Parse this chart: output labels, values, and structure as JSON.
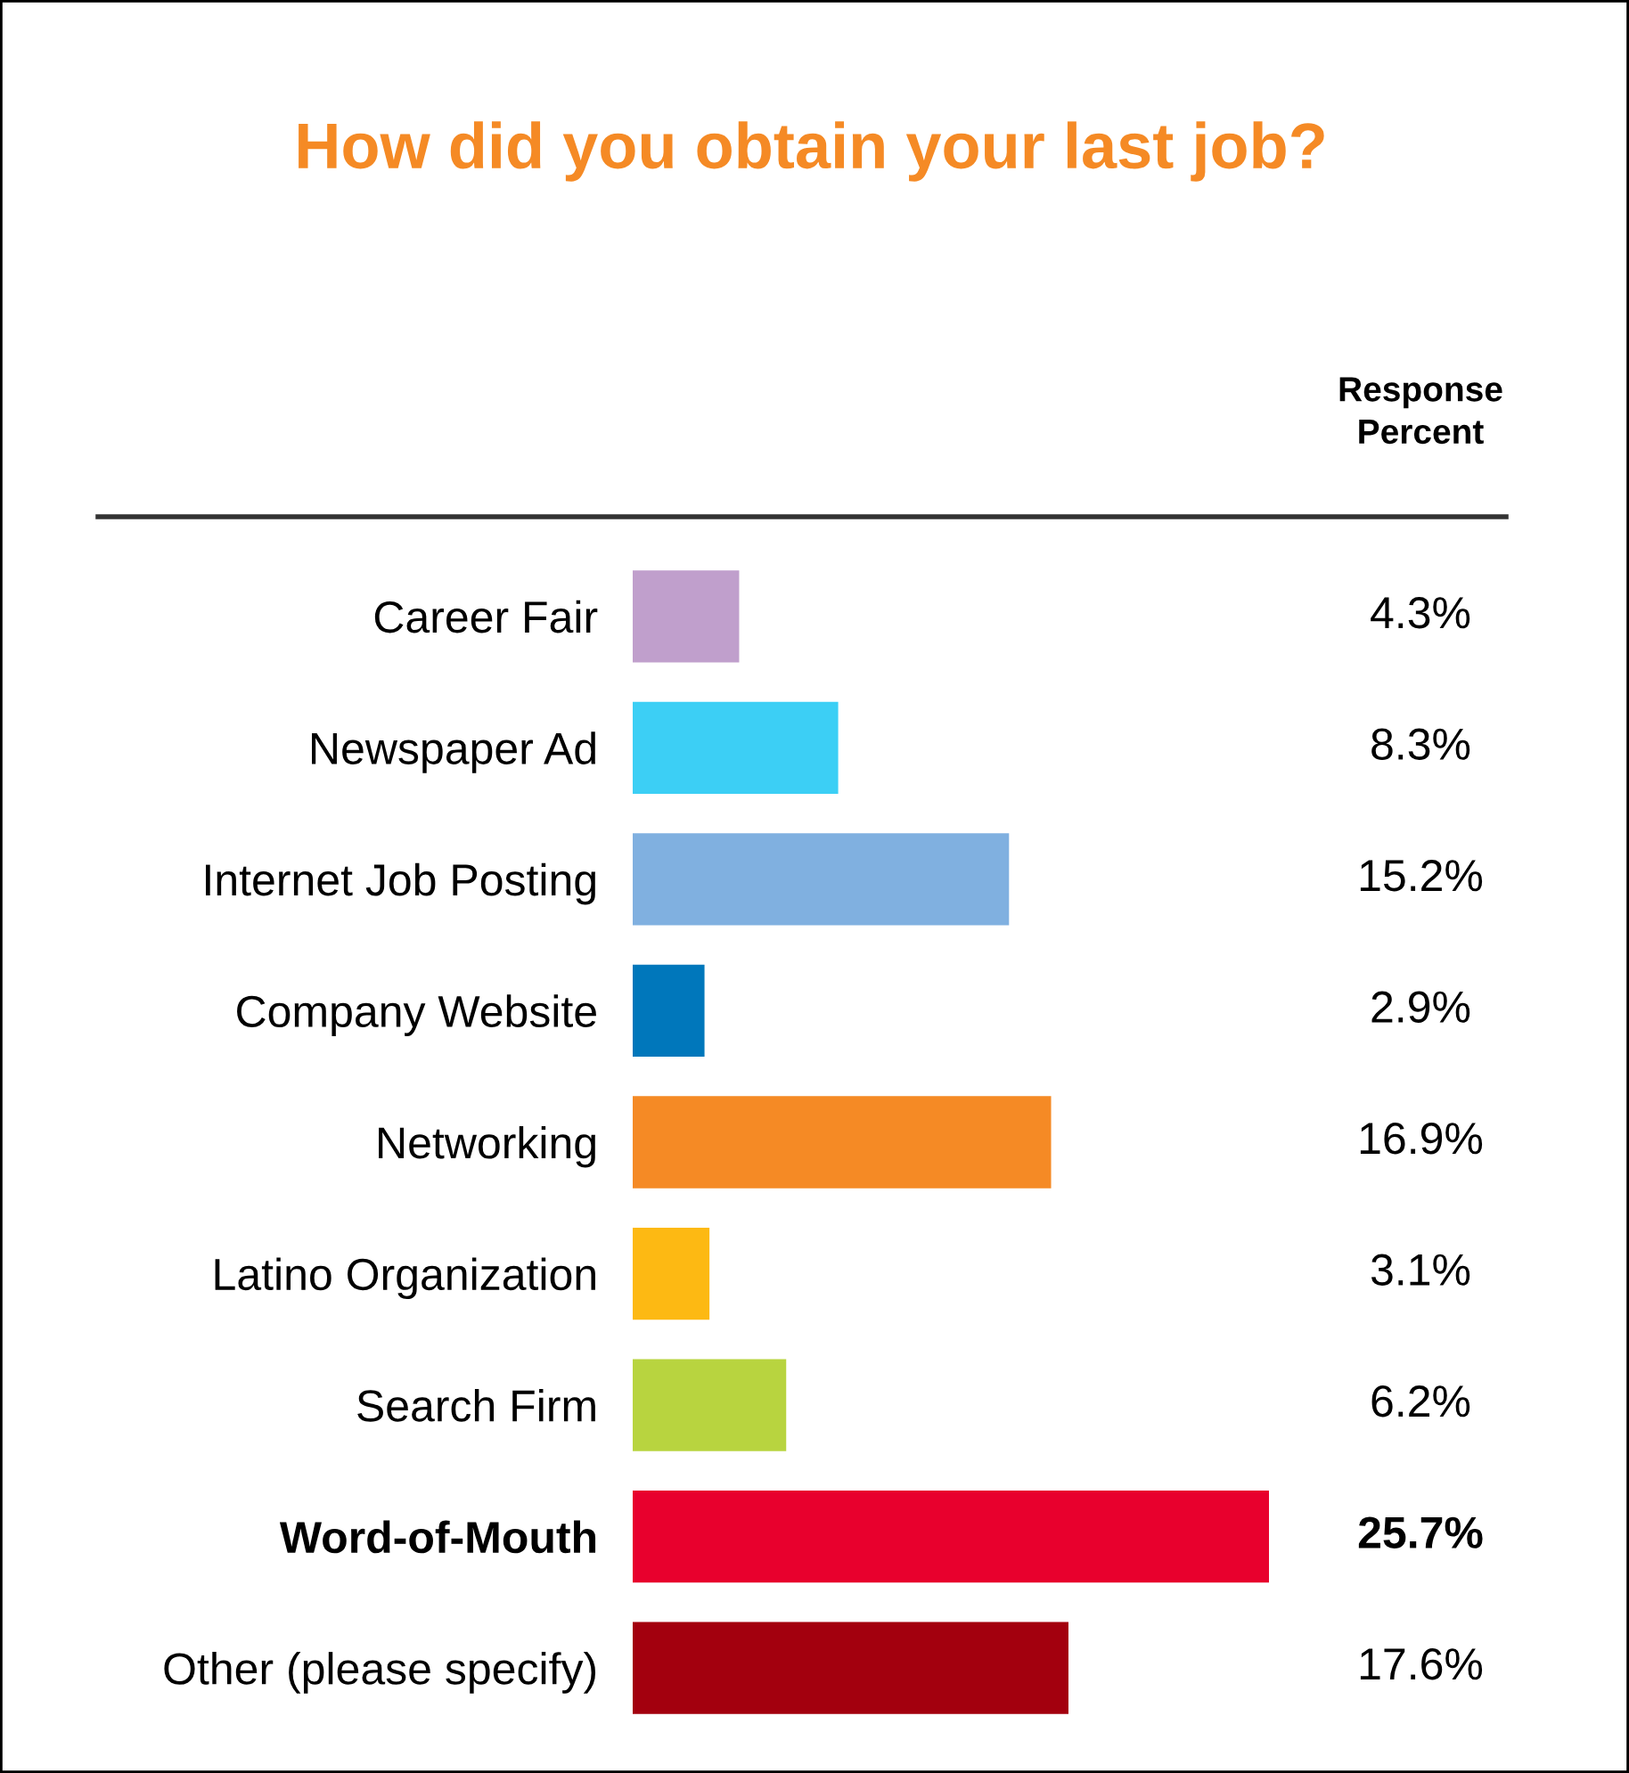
{
  "chart_data": {
    "type": "bar",
    "orientation": "horizontal",
    "title": "How did you obtain your last job?",
    "categories": [
      "Career Fair",
      "Newspaper Ad",
      "Internet Job Posting",
      "Company Website",
      "Networking",
      "Latino Organization",
      "Search Firm",
      "Word-of-Mouth",
      "Other (please specify)"
    ],
    "values": [
      4.3,
      8.3,
      15.2,
      2.9,
      16.9,
      3.1,
      6.2,
      25.7,
      17.6
    ],
    "colors": [
      "#c09fcc",
      "#3ccff5",
      "#80b0e0",
      "#0077bb",
      "#f58a25",
      "#fdb913",
      "#b8d43f",
      "#e8002d",
      "#a3000e"
    ],
    "value_labels": [
      "4.3%",
      "8.3%",
      "15.2%",
      "2.9%",
      "16.9%",
      "3.1%",
      "6.2%",
      "25.7%",
      "17.6%"
    ],
    "annotations": [
      "Response\nPercent"
    ],
    "grid": false,
    "legend": false
  }
}
